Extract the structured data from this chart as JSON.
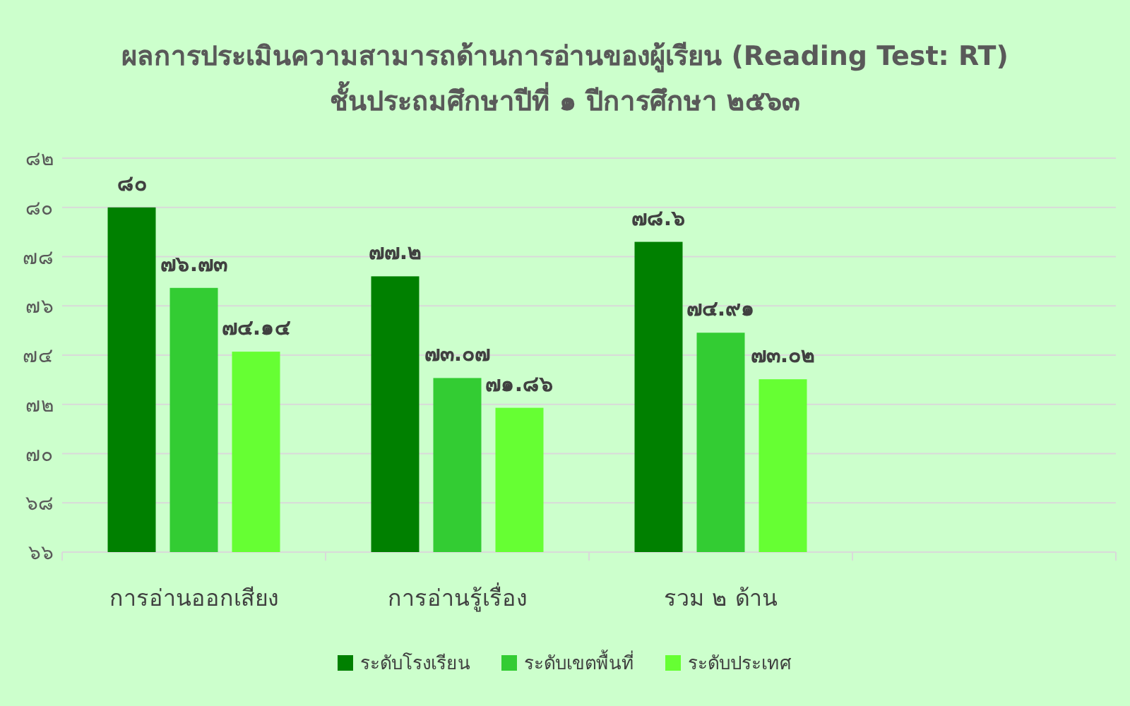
{
  "chart_data": {
    "type": "bar",
    "title": "ผลการประเมินความสามารถด้านการอ่านของผู้เรียน (Reading Test: RT)",
    "subtitle": "ชั้นประถมศึกษาปีที่ ๑ ปีการศึกษา ๒๕๖๓",
    "categories": [
      "การอ่านออกเสียง",
      "การอ่านรู้เรื่อง",
      "รวม ๒ ด้าน",
      null
    ],
    "series": [
      {
        "name": "ระดับโรงเรียน",
        "color": "#008000",
        "values": [
          80,
          77.2,
          78.6,
          null
        ],
        "value_labels": [
          "๘๐",
          "๗๗.๒",
          "๗๘.๖",
          null
        ]
      },
      {
        "name": "ระดับเขตพื้นที่",
        "color": "#33cc33",
        "values": [
          76.73,
          73.07,
          74.91,
          null
        ],
        "value_labels": [
          "๗๖.๗๓",
          "๗๓.๐๗",
          "๗๔.๙๑",
          null
        ]
      },
      {
        "name": "ระดับประเทศ",
        "color": "#66ff33",
        "values": [
          74.14,
          71.86,
          73.02,
          null
        ],
        "value_labels": [
          "๗๔.๑๔",
          "๗๑.๘๖",
          "๗๓.๐๒",
          null
        ]
      }
    ],
    "ylim": [
      66,
      82
    ],
    "yticks": [
      {
        "value": 66,
        "label": "๖๖"
      },
      {
        "value": 68,
        "label": "๖๘"
      },
      {
        "value": 70,
        "label": "๗๐"
      },
      {
        "value": 72,
        "label": "๗๒"
      },
      {
        "value": 74,
        "label": "๗๔"
      },
      {
        "value": 76,
        "label": "๗๖"
      },
      {
        "value": 78,
        "label": "๗๘"
      },
      {
        "value": 80,
        "label": "๘๐"
      },
      {
        "value": 82,
        "label": "๘๒"
      }
    ],
    "grid": "y",
    "legend": "bottom"
  }
}
